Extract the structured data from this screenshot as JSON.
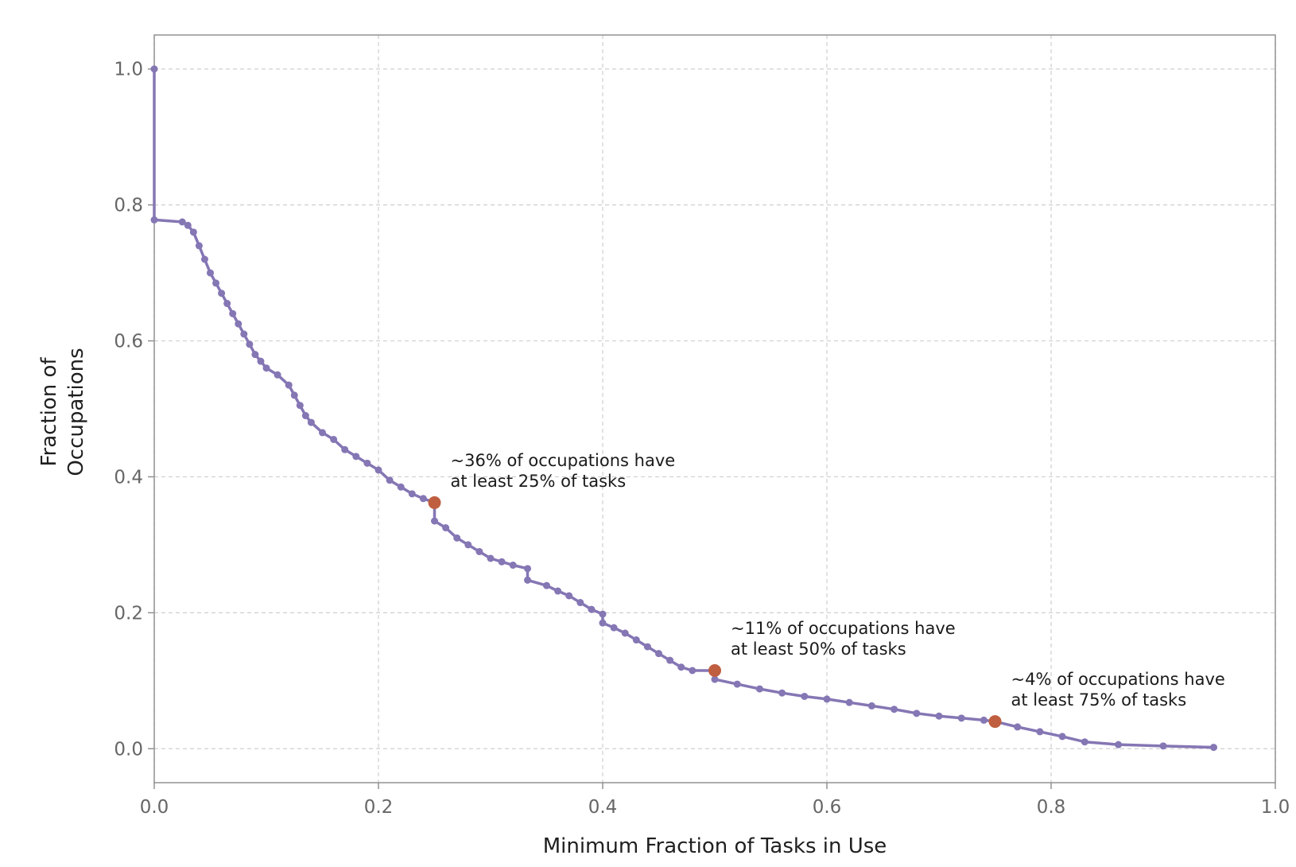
{
  "chart_data": {
    "type": "line",
    "title": "",
    "xlabel": "Minimum Fraction of Tasks in Use",
    "ylabel_lines": [
      "Fraction of",
      "Occupations"
    ],
    "xlim": [
      0.0,
      1.0
    ],
    "ylim": [
      -0.05,
      1.05
    ],
    "x_ticks": [
      "0.0",
      "0.2",
      "0.4",
      "0.6",
      "0.8",
      "1.0"
    ],
    "y_ticks": [
      "0.0",
      "0.2",
      "0.4",
      "0.6",
      "0.8",
      "1.0"
    ],
    "grid": true,
    "colors": {
      "line": "#8576b4",
      "highlight": "#bf5f40",
      "frame": "#8a8a8a",
      "grid": "#cfcfcf"
    },
    "series": [
      {
        "x": [
          0.0,
          0.0,
          0.025,
          0.03,
          0.035,
          0.04,
          0.045,
          0.05,
          0.055,
          0.06,
          0.065,
          0.07,
          0.075,
          0.08,
          0.085,
          0.09,
          0.095,
          0.1,
          0.11,
          0.12,
          0.125,
          0.13,
          0.135,
          0.14,
          0.15,
          0.16,
          0.17,
          0.18,
          0.19,
          0.2,
          0.21,
          0.22,
          0.23,
          0.24,
          0.25,
          0.25,
          0.26,
          0.27,
          0.28,
          0.29,
          0.3,
          0.31,
          0.32,
          0.333,
          0.333,
          0.35,
          0.36,
          0.37,
          0.38,
          0.39,
          0.4,
          0.4,
          0.41,
          0.42,
          0.43,
          0.44,
          0.45,
          0.46,
          0.47,
          0.48,
          0.5,
          0.5,
          0.52,
          0.54,
          0.56,
          0.58,
          0.6,
          0.62,
          0.64,
          0.66,
          0.68,
          0.7,
          0.72,
          0.74,
          0.75,
          0.77,
          0.79,
          0.81,
          0.83,
          0.86,
          0.9,
          0.945
        ],
        "y": [
          1.0,
          0.778,
          0.775,
          0.77,
          0.76,
          0.74,
          0.72,
          0.7,
          0.685,
          0.67,
          0.655,
          0.64,
          0.625,
          0.61,
          0.595,
          0.58,
          0.57,
          0.56,
          0.55,
          0.535,
          0.52,
          0.505,
          0.49,
          0.48,
          0.465,
          0.455,
          0.44,
          0.43,
          0.42,
          0.41,
          0.395,
          0.385,
          0.375,
          0.368,
          0.362,
          0.335,
          0.325,
          0.31,
          0.3,
          0.29,
          0.28,
          0.275,
          0.27,
          0.265,
          0.248,
          0.24,
          0.232,
          0.225,
          0.215,
          0.205,
          0.198,
          0.185,
          0.178,
          0.17,
          0.16,
          0.15,
          0.14,
          0.13,
          0.12,
          0.115,
          0.115,
          0.102,
          0.095,
          0.088,
          0.082,
          0.077,
          0.073,
          0.068,
          0.063,
          0.058,
          0.052,
          0.048,
          0.045,
          0.042,
          0.04,
          0.032,
          0.025,
          0.018,
          0.01,
          0.006,
          0.004,
          0.002
        ]
      }
    ],
    "highlights": [
      {
        "x": 0.25,
        "y": 0.362,
        "label_lines": [
          "~36% of occupations have",
          "at least 25% of tasks"
        ]
      },
      {
        "x": 0.5,
        "y": 0.115,
        "label_lines": [
          "~11% of occupations have",
          "at least 50% of tasks"
        ]
      },
      {
        "x": 0.75,
        "y": 0.04,
        "label_lines": [
          "~4% of occupations have",
          "at least 75% of tasks"
        ]
      }
    ]
  }
}
